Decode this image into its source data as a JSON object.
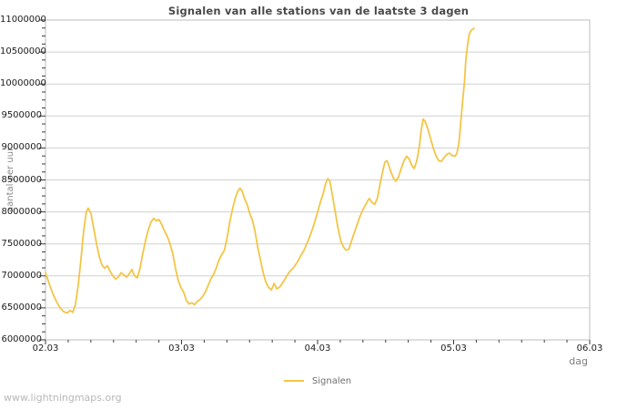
{
  "watermark": "www.lightningmaps.org",
  "colors": {
    "line": "#f3c545",
    "grid": "#d0d0d0",
    "border": "#bdbdbd",
    "tick": "#3a3a3a",
    "title_text": "#4a4a4a",
    "axis_text": "#1c1c1c",
    "muted_text": "#7d7d7d",
    "watermark_text": "#b7b7b7"
  },
  "chart_data": {
    "type": "line",
    "title": "Signalen van alle stations van de laatste 3 dagen",
    "xlabel": "dag",
    "ylabel": "aantal per uur",
    "x_tick_labels": [
      "02.03",
      "03.03",
      "04.03",
      "05.03",
      "06.03"
    ],
    "y_tick_labels": [
      "6000000",
      "6500000",
      "7000000",
      "7500000",
      "8000000",
      "8500000",
      "9000000",
      "9500000",
      "10000000",
      "10500000",
      "11000000"
    ],
    "xlim": [
      0,
      4
    ],
    "ylim": [
      6000000,
      11000000
    ],
    "y_tick_step": 500000,
    "y_minor_per_major": 4,
    "x_minor_per_day": 6,
    "grid": "horizontal-only",
    "legend": {
      "position": "bottom-center",
      "entries": [
        {
          "label": "Signalen",
          "color": "#f3c545"
        }
      ]
    },
    "series": [
      {
        "name": "Signalen",
        "color": "#f3c545",
        "points": [
          [
            0.0,
            7050000
          ],
          [
            0.027,
            6880000
          ],
          [
            0.054,
            6720000
          ],
          [
            0.08,
            6600000
          ],
          [
            0.107,
            6500000
          ],
          [
            0.134,
            6440000
          ],
          [
            0.16,
            6420000
          ],
          [
            0.18,
            6460000
          ],
          [
            0.2,
            6430000
          ],
          [
            0.22,
            6550000
          ],
          [
            0.24,
            6850000
          ],
          [
            0.26,
            7250000
          ],
          [
            0.28,
            7700000
          ],
          [
            0.3,
            8000000
          ],
          [
            0.314,
            8060000
          ],
          [
            0.334,
            7980000
          ],
          [
            0.354,
            7750000
          ],
          [
            0.375,
            7500000
          ],
          [
            0.395,
            7300000
          ],
          [
            0.415,
            7170000
          ],
          [
            0.435,
            7120000
          ],
          [
            0.455,
            7160000
          ],
          [
            0.475,
            7070000
          ],
          [
            0.495,
            7000000
          ],
          [
            0.515,
            6950000
          ],
          [
            0.535,
            6980000
          ],
          [
            0.555,
            7050000
          ],
          [
            0.575,
            7020000
          ],
          [
            0.595,
            6980000
          ],
          [
            0.615,
            7030000
          ],
          [
            0.635,
            7100000
          ],
          [
            0.655,
            7000000
          ],
          [
            0.675,
            6970000
          ],
          [
            0.695,
            7120000
          ],
          [
            0.715,
            7350000
          ],
          [
            0.735,
            7550000
          ],
          [
            0.755,
            7720000
          ],
          [
            0.775,
            7840000
          ],
          [
            0.795,
            7900000
          ],
          [
            0.815,
            7860000
          ],
          [
            0.835,
            7880000
          ],
          [
            0.855,
            7800000
          ],
          [
            0.875,
            7700000
          ],
          [
            0.895,
            7620000
          ],
          [
            0.915,
            7500000
          ],
          [
            0.935,
            7350000
          ],
          [
            0.955,
            7120000
          ],
          [
            0.975,
            6930000
          ],
          [
            0.995,
            6820000
          ],
          [
            1.015,
            6750000
          ],
          [
            1.035,
            6620000
          ],
          [
            1.055,
            6560000
          ],
          [
            1.075,
            6580000
          ],
          [
            1.095,
            6550000
          ],
          [
            1.115,
            6600000
          ],
          [
            1.135,
            6630000
          ],
          [
            1.155,
            6680000
          ],
          [
            1.175,
            6750000
          ],
          [
            1.195,
            6850000
          ],
          [
            1.215,
            6950000
          ],
          [
            1.235,
            7020000
          ],
          [
            1.255,
            7120000
          ],
          [
            1.275,
            7250000
          ],
          [
            1.295,
            7330000
          ],
          [
            1.315,
            7400000
          ],
          [
            1.335,
            7600000
          ],
          [
            1.355,
            7850000
          ],
          [
            1.375,
            8050000
          ],
          [
            1.395,
            8220000
          ],
          [
            1.415,
            8330000
          ],
          [
            1.43,
            8370000
          ],
          [
            1.445,
            8330000
          ],
          [
            1.465,
            8200000
          ],
          [
            1.485,
            8100000
          ],
          [
            1.505,
            7950000
          ],
          [
            1.52,
            7880000
          ],
          [
            1.54,
            7700000
          ],
          [
            1.56,
            7450000
          ],
          [
            1.58,
            7250000
          ],
          [
            1.6,
            7050000
          ],
          [
            1.62,
            6900000
          ],
          [
            1.64,
            6820000
          ],
          [
            1.66,
            6780000
          ],
          [
            1.68,
            6880000
          ],
          [
            1.7,
            6800000
          ],
          [
            1.72,
            6820000
          ],
          [
            1.74,
            6880000
          ],
          [
            1.76,
            6950000
          ],
          [
            1.78,
            7020000
          ],
          [
            1.8,
            7080000
          ],
          [
            1.82,
            7120000
          ],
          [
            1.84,
            7180000
          ],
          [
            1.86,
            7250000
          ],
          [
            1.88,
            7330000
          ],
          [
            1.9,
            7400000
          ],
          [
            1.92,
            7500000
          ],
          [
            1.94,
            7600000
          ],
          [
            1.96,
            7720000
          ],
          [
            1.98,
            7850000
          ],
          [
            2.0,
            8000000
          ],
          [
            2.02,
            8150000
          ],
          [
            2.04,
            8280000
          ],
          [
            2.06,
            8450000
          ],
          [
            2.075,
            8520000
          ],
          [
            2.09,
            8480000
          ],
          [
            2.11,
            8250000
          ],
          [
            2.13,
            8000000
          ],
          [
            2.15,
            7750000
          ],
          [
            2.17,
            7550000
          ],
          [
            2.19,
            7450000
          ],
          [
            2.21,
            7400000
          ],
          [
            2.23,
            7420000
          ],
          [
            2.25,
            7550000
          ],
          [
            2.27,
            7680000
          ],
          [
            2.29,
            7800000
          ],
          [
            2.31,
            7920000
          ],
          [
            2.33,
            8020000
          ],
          [
            2.35,
            8100000
          ],
          [
            2.37,
            8180000
          ],
          [
            2.38,
            8210000
          ],
          [
            2.4,
            8150000
          ],
          [
            2.42,
            8120000
          ],
          [
            2.44,
            8220000
          ],
          [
            2.46,
            8450000
          ],
          [
            2.48,
            8650000
          ],
          [
            2.495,
            8780000
          ],
          [
            2.51,
            8800000
          ],
          [
            2.52,
            8750000
          ],
          [
            2.54,
            8620000
          ],
          [
            2.56,
            8520000
          ],
          [
            2.575,
            8480000
          ],
          [
            2.595,
            8550000
          ],
          [
            2.615,
            8680000
          ],
          [
            2.635,
            8800000
          ],
          [
            2.655,
            8870000
          ],
          [
            2.675,
            8820000
          ],
          [
            2.695,
            8720000
          ],
          [
            2.71,
            8680000
          ],
          [
            2.73,
            8800000
          ],
          [
            2.75,
            9050000
          ],
          [
            2.76,
            9250000
          ],
          [
            2.776,
            9450000
          ],
          [
            2.79,
            9420000
          ],
          [
            2.81,
            9300000
          ],
          [
            2.83,
            9150000
          ],
          [
            2.85,
            9000000
          ],
          [
            2.87,
            8880000
          ],
          [
            2.89,
            8800000
          ],
          [
            2.91,
            8790000
          ],
          [
            2.93,
            8850000
          ],
          [
            2.95,
            8900000
          ],
          [
            2.97,
            8920000
          ],
          [
            2.99,
            8880000
          ],
          [
            3.01,
            8870000
          ],
          [
            3.025,
            8920000
          ],
          [
            3.04,
            9100000
          ],
          [
            3.05,
            9350000
          ],
          [
            3.065,
            9700000
          ],
          [
            3.08,
            10050000
          ],
          [
            3.09,
            10400000
          ],
          [
            3.105,
            10650000
          ],
          [
            3.115,
            10780000
          ],
          [
            3.13,
            10840000
          ],
          [
            3.15,
            10870000
          ]
        ]
      }
    ]
  }
}
